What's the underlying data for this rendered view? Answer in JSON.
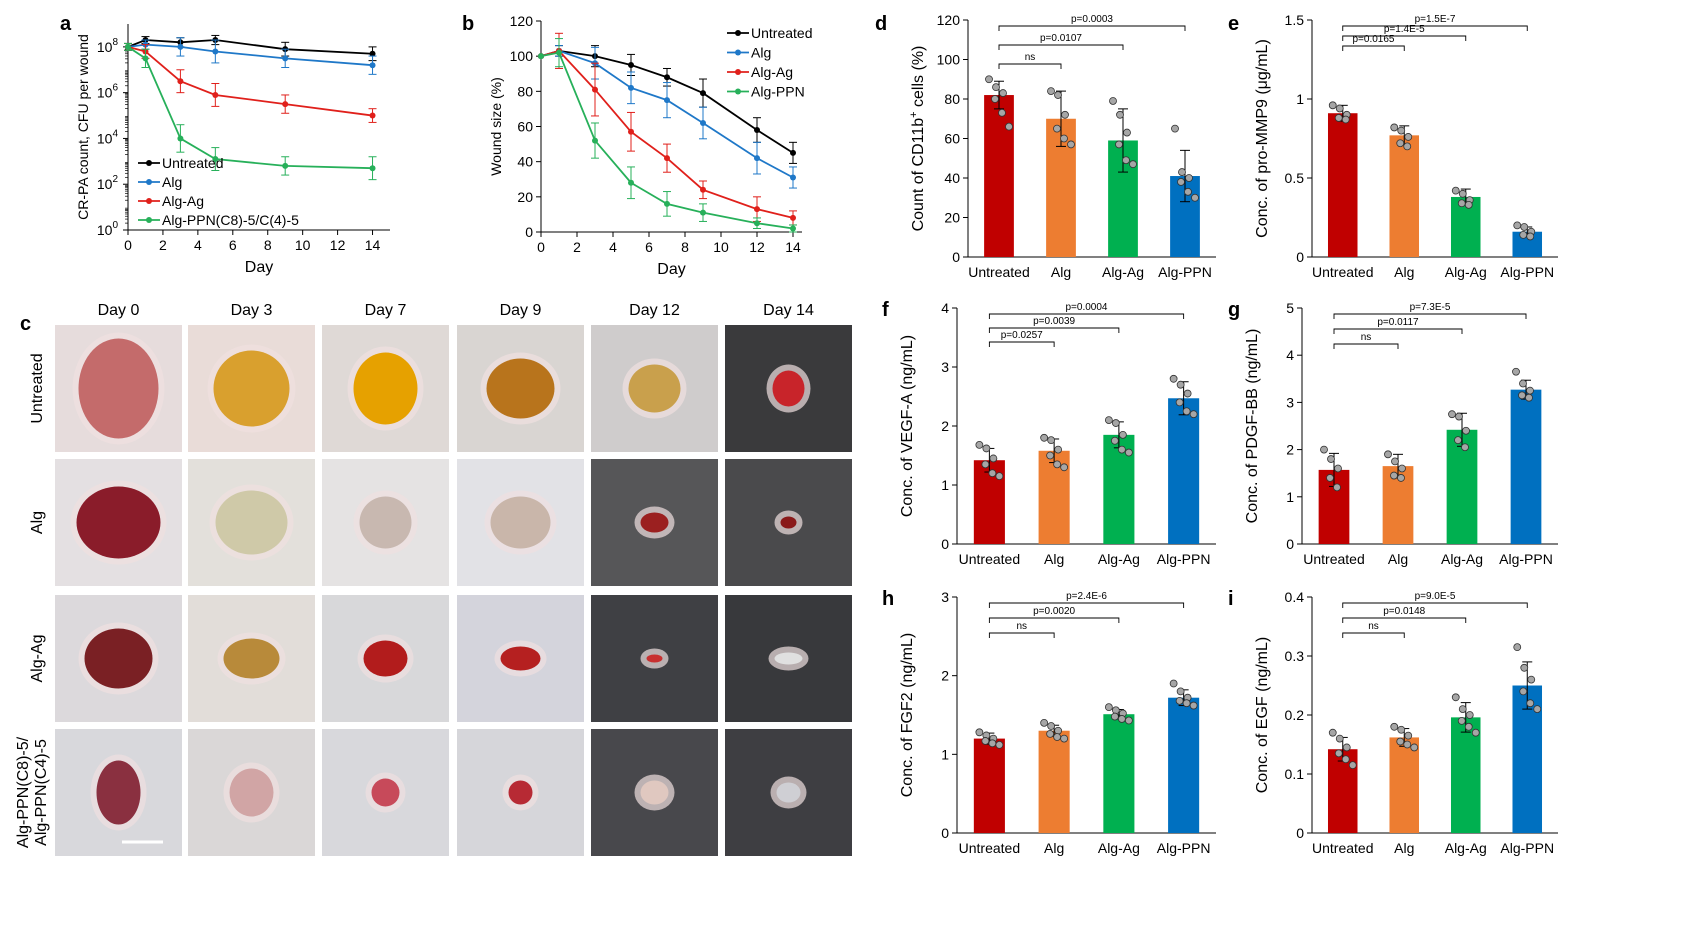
{
  "colors": {
    "untreated_line": "#000000",
    "alg_line": "#1f78c8",
    "algag_line": "#e0201b",
    "algppn_line": "#27b05a",
    "bar_untreated": "#c00000",
    "bar_alg": "#ed7d31",
    "bar_algag": "#00b050",
    "bar_algppn": "#0070c0"
  },
  "panel_a": {
    "label": "a",
    "xlabel": "Day",
    "ylabel": "CR-PA count, CFU per wound",
    "xticks": [
      "0",
      "2",
      "4",
      "6",
      "8",
      "10",
      "12",
      "14"
    ],
    "yticks": [
      {
        "base": "10",
        "exp": "0"
      },
      {
        "base": "10",
        "exp": "2"
      },
      {
        "base": "10",
        "exp": "4"
      },
      {
        "base": "10",
        "exp": "6"
      },
      {
        "base": "10",
        "exp": "8"
      }
    ],
    "legend": [
      "Untreated",
      "Alg",
      "Alg-Ag",
      "Alg-PPN(C8)-5/C(4)-5"
    ]
  },
  "panel_b": {
    "label": "b",
    "xlabel": "Day",
    "ylabel": "Wound size (%)",
    "xticks": [
      "0",
      "2",
      "4",
      "6",
      "8",
      "10",
      "12",
      "14"
    ],
    "yticks": [
      "0",
      "20",
      "40",
      "60",
      "80",
      "100",
      "120"
    ],
    "legend": [
      "Untreated",
      "Alg",
      "Alg-Ag",
      "Alg-PPN"
    ]
  },
  "panel_c": {
    "label": "c",
    "days": [
      "Day 0",
      "Day 3",
      "Day 7",
      "Day 9",
      "Day 12",
      "Day 14"
    ],
    "rows": [
      "Untreated",
      "Alg",
      "Alg-Ag",
      "Alg-PPN(C8)-5/",
      "Alg-PPN(C4)-5"
    ]
  },
  "bar_categories": [
    "Untreated",
    "Alg",
    "Alg-Ag",
    "Alg-PPN"
  ],
  "panel_d": {
    "label": "d",
    "ylabel": "Count of CD11b",
    "ylabel_sup": "+",
    "ylabel_tail": " cells (%)",
    "yticks": [
      "0",
      "20",
      "40",
      "60",
      "80",
      "100",
      "120"
    ],
    "sig": [
      "ns",
      "p=0.0107",
      "p=0.0003"
    ]
  },
  "panel_e": {
    "label": "e",
    "ylabel": "Conc. of pro-MMP9 (μg/mL)",
    "yticks": [
      "0",
      "0.5",
      "1",
      "1.5"
    ],
    "sig": [
      "p=0.0165",
      "p=1.4E-5",
      "p=1.5E-7"
    ]
  },
  "panel_f": {
    "label": "f",
    "ylabel": "Conc. of VEGF-A (ng/mL)",
    "yticks": [
      "0",
      "1",
      "2",
      "3",
      "4"
    ],
    "sig": [
      "p=0.0257",
      "p=0.0039",
      "p=0.0004"
    ]
  },
  "panel_g": {
    "label": "g",
    "ylabel": "Conc. of PDGF-BB (ng/mL)",
    "yticks": [
      "0",
      "1",
      "2",
      "3",
      "4",
      "5"
    ],
    "sig": [
      "ns",
      "p=0.0117",
      "p=7.3E-5"
    ]
  },
  "panel_h": {
    "label": "h",
    "ylabel": "Conc. of FGF2 (ng/mL)",
    "yticks": [
      "0",
      "1",
      "2",
      "3"
    ],
    "sig": [
      "ns",
      "p=0.0020",
      "p=2.4E-6"
    ]
  },
  "panel_i": {
    "label": "i",
    "ylabel": "Conc. of EGF (ng/mL)",
    "yticks": [
      "0",
      "0.1",
      "0.2",
      "0.3",
      "0.4"
    ],
    "sig": [
      "ns",
      "p=0.0148",
      "p=9.0E-5"
    ]
  },
  "chart_data": [
    {
      "id": "a",
      "type": "line",
      "title": "",
      "xlabel": "Day",
      "ylabel": "CR-PA count, CFU per wound",
      "yscale": "log10",
      "xlim": [
        0,
        15
      ],
      "ylim": [
        0,
        9
      ],
      "x": [
        0,
        1,
        3,
        5,
        9,
        14
      ],
      "series": [
        {
          "name": "Untreated",
          "values": [
            8,
            8.3,
            8.2,
            8.3,
            7.9,
            7.7
          ],
          "err": [
            0.15,
            0.15,
            0.2,
            0.2,
            0.3,
            0.3
          ]
        },
        {
          "name": "Alg",
          "values": [
            8,
            8.1,
            8.0,
            7.8,
            7.5,
            7.2
          ],
          "err": [
            0.15,
            0.2,
            0.4,
            0.5,
            0.4,
            0.4
          ]
        },
        {
          "name": "Alg-Ag",
          "values": [
            8,
            7.8,
            6.5,
            5.9,
            5.5,
            5.0
          ],
          "err": [
            0.15,
            0.3,
            0.5,
            0.5,
            0.4,
            0.3
          ]
        },
        {
          "name": "Alg-PPN(C8)-5/C(4)-5",
          "values": [
            8,
            7.5,
            4.0,
            3.1,
            2.8,
            2.7
          ],
          "err": [
            0.15,
            0.4,
            0.6,
            0.5,
            0.4,
            0.5
          ]
        }
      ]
    },
    {
      "id": "b",
      "type": "line",
      "title": "",
      "xlabel": "Day",
      "ylabel": "Wound size (%)",
      "xlim": [
        0,
        14.5
      ],
      "ylim": [
        0,
        120
      ],
      "x": [
        0,
        1,
        3,
        5,
        7,
        9,
        12,
        14
      ],
      "series": [
        {
          "name": "Untreated",
          "values": [
            100,
            103,
            100,
            95,
            88,
            79,
            58,
            45
          ],
          "err": [
            0,
            3,
            6,
            6,
            5,
            8,
            7,
            6
          ]
        },
        {
          "name": "Alg",
          "values": [
            100,
            103,
            96,
            82,
            75,
            62,
            42,
            31
          ],
          "err": [
            0,
            3,
            9,
            9,
            10,
            9,
            9,
            6
          ]
        },
        {
          "name": "Alg-Ag",
          "values": [
            100,
            103,
            81,
            57,
            42,
            24,
            13,
            8
          ],
          "err": [
            0,
            10,
            15,
            11,
            8,
            5,
            7,
            4
          ]
        },
        {
          "name": "Alg-PPN",
          "values": [
            100,
            102,
            52,
            28,
            16,
            11,
            5,
            2
          ],
          "err": [
            0,
            8,
            10,
            9,
            7,
            5,
            3,
            2
          ]
        }
      ]
    },
    {
      "id": "d",
      "type": "bar",
      "categories": [
        "Untreated",
        "Alg",
        "Alg-Ag",
        "Alg-PPN"
      ],
      "values": [
        82,
        70,
        59,
        41
      ],
      "err": [
        7,
        14,
        16,
        13
      ],
      "ylim": [
        0,
        120
      ],
      "ylabel": "Count of CD11b+ cells (%)",
      "points": [
        [
          90,
          86,
          83,
          80,
          73,
          66
        ],
        [
          84,
          82,
          72,
          65,
          60,
          57
        ],
        [
          79,
          72,
          63,
          57,
          49,
          47
        ],
        [
          65,
          43,
          40,
          38,
          33,
          30
        ]
      ]
    },
    {
      "id": "e",
      "type": "bar",
      "categories": [
        "Untreated",
        "Alg",
        "Alg-Ag",
        "Alg-PPN"
      ],
      "values": [
        0.91,
        0.77,
        0.38,
        0.16
      ],
      "err": [
        0.05,
        0.06,
        0.05,
        0.03
      ],
      "ylim": [
        0,
        1.5
      ],
      "ylabel": "Conc. of pro-MMP9 (μg/mL)",
      "points": [
        [
          0.96,
          0.94,
          0.9,
          0.88,
          0.87
        ],
        [
          0.82,
          0.8,
          0.76,
          0.72,
          0.7
        ],
        [
          0.42,
          0.4,
          0.36,
          0.34,
          0.33
        ],
        [
          0.2,
          0.19,
          0.16,
          0.14,
          0.13
        ]
      ]
    },
    {
      "id": "f",
      "type": "bar",
      "categories": [
        "Untreated",
        "Alg",
        "Alg-Ag",
        "Alg-PPN"
      ],
      "values": [
        1.42,
        1.58,
        1.85,
        2.47
      ],
      "err": [
        0.2,
        0.2,
        0.22,
        0.28
      ],
      "ylim": [
        0,
        4
      ],
      "ylabel": "Conc. of VEGF-A (ng/mL)",
      "points": [
        [
          1.68,
          1.62,
          1.45,
          1.35,
          1.2,
          1.15
        ],
        [
          1.8,
          1.76,
          1.6,
          1.5,
          1.35,
          1.3
        ],
        [
          2.1,
          2.05,
          1.85,
          1.75,
          1.6,
          1.55
        ],
        [
          2.8,
          2.7,
          2.55,
          2.4,
          2.25,
          2.2
        ]
      ]
    },
    {
      "id": "g",
      "type": "bar",
      "categories": [
        "Untreated",
        "Alg",
        "Alg-Ag",
        "Alg-PPN"
      ],
      "values": [
        1.57,
        1.65,
        2.42,
        3.27
      ],
      "err": [
        0.35,
        0.25,
        0.35,
        0.2
      ],
      "ylim": [
        0,
        5
      ],
      "ylabel": "Conc. of PDGF-BB (ng/mL)",
      "points": [
        [
          2.0,
          1.8,
          1.6,
          1.4,
          1.2
        ],
        [
          1.9,
          1.75,
          1.6,
          1.45,
          1.4
        ],
        [
          2.75,
          2.7,
          2.4,
          2.2,
          2.05
        ],
        [
          3.65,
          3.4,
          3.25,
          3.15,
          3.1
        ]
      ]
    },
    {
      "id": "h",
      "type": "bar",
      "categories": [
        "Untreated",
        "Alg",
        "Alg-Ag",
        "Alg-PPN"
      ],
      "values": [
        1.2,
        1.3,
        1.51,
        1.72
      ],
      "err": [
        0.07,
        0.07,
        0.06,
        0.1
      ],
      "ylim": [
        0,
        3
      ],
      "ylabel": "Conc. of FGF2 (ng/mL)",
      "points": [
        [
          1.28,
          1.24,
          1.2,
          1.17,
          1.14,
          1.12
        ],
        [
          1.4,
          1.36,
          1.3,
          1.26,
          1.22,
          1.2
        ],
        [
          1.6,
          1.56,
          1.52,
          1.48,
          1.45,
          1.43
        ],
        [
          1.9,
          1.8,
          1.72,
          1.68,
          1.65,
          1.62
        ]
      ]
    },
    {
      "id": "i",
      "type": "bar",
      "categories": [
        "Untreated",
        "Alg",
        "Alg-Ag",
        "Alg-PPN"
      ],
      "values": [
        0.142,
        0.162,
        0.196,
        0.25
      ],
      "err": [
        0.02,
        0.015,
        0.025,
        0.04
      ],
      "ylim": [
        0,
        0.4
      ],
      "ylabel": "Conc. of EGF (ng/mL)",
      "points": [
        [
          0.17,
          0.16,
          0.145,
          0.135,
          0.125,
          0.115
        ],
        [
          0.18,
          0.175,
          0.165,
          0.155,
          0.15,
          0.145
        ],
        [
          0.23,
          0.21,
          0.2,
          0.19,
          0.18,
          0.17
        ],
        [
          0.315,
          0.28,
          0.26,
          0.24,
          0.22,
          0.21
        ]
      ]
    }
  ]
}
